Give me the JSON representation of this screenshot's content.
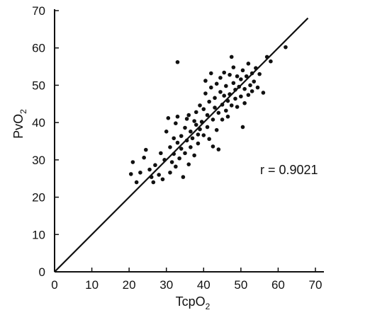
{
  "chart_data": {
    "type": "scatter",
    "title": "",
    "xlabel": "TcpO",
    "xlabel_sub": "2",
    "ylabel": "PvO",
    "ylabel_sub": "2",
    "xlim": [
      0,
      70
    ],
    "ylim": [
      0,
      70
    ],
    "xticks": [
      0,
      10,
      20,
      30,
      40,
      50,
      60,
      70
    ],
    "yticks": [
      0,
      10,
      20,
      30,
      40,
      50,
      60,
      70
    ],
    "grid": false,
    "annotation": "r = 0.9021",
    "regression_line": {
      "x": [
        0,
        68
      ],
      "y": [
        0,
        68
      ]
    },
    "points": [
      {
        "x": 20.5,
        "y": 26.2
      },
      {
        "x": 21.0,
        "y": 29.4
      },
      {
        "x": 22.0,
        "y": 24.0
      },
      {
        "x": 23.0,
        "y": 26.6
      },
      {
        "x": 24.0,
        "y": 30.6
      },
      {
        "x": 24.5,
        "y": 32.7
      },
      {
        "x": 25.5,
        "y": 27.4
      },
      {
        "x": 26.0,
        "y": 25.4
      },
      {
        "x": 26.5,
        "y": 24.0
      },
      {
        "x": 27.0,
        "y": 28.6
      },
      {
        "x": 28.0,
        "y": 26.0
      },
      {
        "x": 28.5,
        "y": 31.8
      },
      {
        "x": 29.0,
        "y": 24.8
      },
      {
        "x": 29.5,
        "y": 30.0
      },
      {
        "x": 30.0,
        "y": 37.6
      },
      {
        "x": 30.5,
        "y": 41.2
      },
      {
        "x": 31.0,
        "y": 26.6
      },
      {
        "x": 31.0,
        "y": 33.4
      },
      {
        "x": 31.5,
        "y": 29.4
      },
      {
        "x": 32.0,
        "y": 35.8
      },
      {
        "x": 32.0,
        "y": 31.6
      },
      {
        "x": 32.5,
        "y": 28.2
      },
      {
        "x": 32.5,
        "y": 39.8
      },
      {
        "x": 33.0,
        "y": 34.6
      },
      {
        "x": 33.0,
        "y": 41.6
      },
      {
        "x": 33.0,
        "y": 56.2
      },
      {
        "x": 33.5,
        "y": 30.4
      },
      {
        "x": 34.0,
        "y": 36.4
      },
      {
        "x": 34.0,
        "y": 33.0
      },
      {
        "x": 34.5,
        "y": 25.4
      },
      {
        "x": 35.0,
        "y": 38.6
      },
      {
        "x": 35.0,
        "y": 31.8
      },
      {
        "x": 35.5,
        "y": 41.0
      },
      {
        "x": 35.5,
        "y": 35.2
      },
      {
        "x": 36.0,
        "y": 42.0
      },
      {
        "x": 36.0,
        "y": 28.8
      },
      {
        "x": 36.5,
        "y": 33.4
      },
      {
        "x": 36.5,
        "y": 37.6
      },
      {
        "x": 37.0,
        "y": 35.8
      },
      {
        "x": 37.5,
        "y": 40.4
      },
      {
        "x": 37.5,
        "y": 31.2
      },
      {
        "x": 38.0,
        "y": 39.4
      },
      {
        "x": 38.0,
        "y": 42.8
      },
      {
        "x": 38.5,
        "y": 36.8
      },
      {
        "x": 38.5,
        "y": 34.4
      },
      {
        "x": 39.0,
        "y": 44.6
      },
      {
        "x": 39.0,
        "y": 38.2
      },
      {
        "x": 39.5,
        "y": 40.2
      },
      {
        "x": 40.0,
        "y": 43.6
      },
      {
        "x": 40.0,
        "y": 36.6
      },
      {
        "x": 40.5,
        "y": 47.8
      },
      {
        "x": 40.5,
        "y": 51.2
      },
      {
        "x": 41.0,
        "y": 42.0
      },
      {
        "x": 41.0,
        "y": 38.8
      },
      {
        "x": 41.5,
        "y": 45.6
      },
      {
        "x": 41.5,
        "y": 35.6
      },
      {
        "x": 42.0,
        "y": 49.4
      },
      {
        "x": 42.0,
        "y": 53.2
      },
      {
        "x": 42.5,
        "y": 40.8
      },
      {
        "x": 42.5,
        "y": 33.6
      },
      {
        "x": 43.0,
        "y": 44.0
      },
      {
        "x": 43.0,
        "y": 46.6
      },
      {
        "x": 43.5,
        "y": 50.4
      },
      {
        "x": 43.5,
        "y": 38.0
      },
      {
        "x": 44.0,
        "y": 42.6
      },
      {
        "x": 44.0,
        "y": 32.8
      },
      {
        "x": 44.5,
        "y": 48.2
      },
      {
        "x": 44.5,
        "y": 52.0
      },
      {
        "x": 45.0,
        "y": 44.8
      },
      {
        "x": 45.0,
        "y": 40.8
      },
      {
        "x": 45.5,
        "y": 47.2
      },
      {
        "x": 45.5,
        "y": 53.4
      },
      {
        "x": 46.0,
        "y": 43.2
      },
      {
        "x": 46.0,
        "y": 49.8
      },
      {
        "x": 46.5,
        "y": 45.8
      },
      {
        "x": 46.5,
        "y": 41.6
      },
      {
        "x": 47.0,
        "y": 52.8
      },
      {
        "x": 47.0,
        "y": 47.6
      },
      {
        "x": 47.5,
        "y": 57.6
      },
      {
        "x": 47.5,
        "y": 44.6
      },
      {
        "x": 48.0,
        "y": 50.6
      },
      {
        "x": 48.0,
        "y": 54.8
      },
      {
        "x": 48.5,
        "y": 46.4
      },
      {
        "x": 48.5,
        "y": 48.8
      },
      {
        "x": 49.0,
        "y": 52.4
      },
      {
        "x": 49.0,
        "y": 44.2
      },
      {
        "x": 49.5,
        "y": 49.6
      },
      {
        "x": 50.0,
        "y": 51.6
      },
      {
        "x": 50.0,
        "y": 47.0
      },
      {
        "x": 50.5,
        "y": 54.0
      },
      {
        "x": 50.5,
        "y": 38.8
      },
      {
        "x": 51.0,
        "y": 49.0
      },
      {
        "x": 51.0,
        "y": 45.2
      },
      {
        "x": 51.5,
        "y": 52.4
      },
      {
        "x": 52.0,
        "y": 55.8
      },
      {
        "x": 52.0,
        "y": 47.4
      },
      {
        "x": 52.5,
        "y": 50.0
      },
      {
        "x": 53.0,
        "y": 53.2
      },
      {
        "x": 53.0,
        "y": 48.4
      },
      {
        "x": 53.5,
        "y": 51.0
      },
      {
        "x": 54.0,
        "y": 54.6
      },
      {
        "x": 54.5,
        "y": 49.4
      },
      {
        "x": 55.0,
        "y": 53.0
      },
      {
        "x": 56.0,
        "y": 48.0
      },
      {
        "x": 57.0,
        "y": 57.6
      },
      {
        "x": 58.0,
        "y": 56.4
      },
      {
        "x": 62.0,
        "y": 60.2
      }
    ]
  }
}
